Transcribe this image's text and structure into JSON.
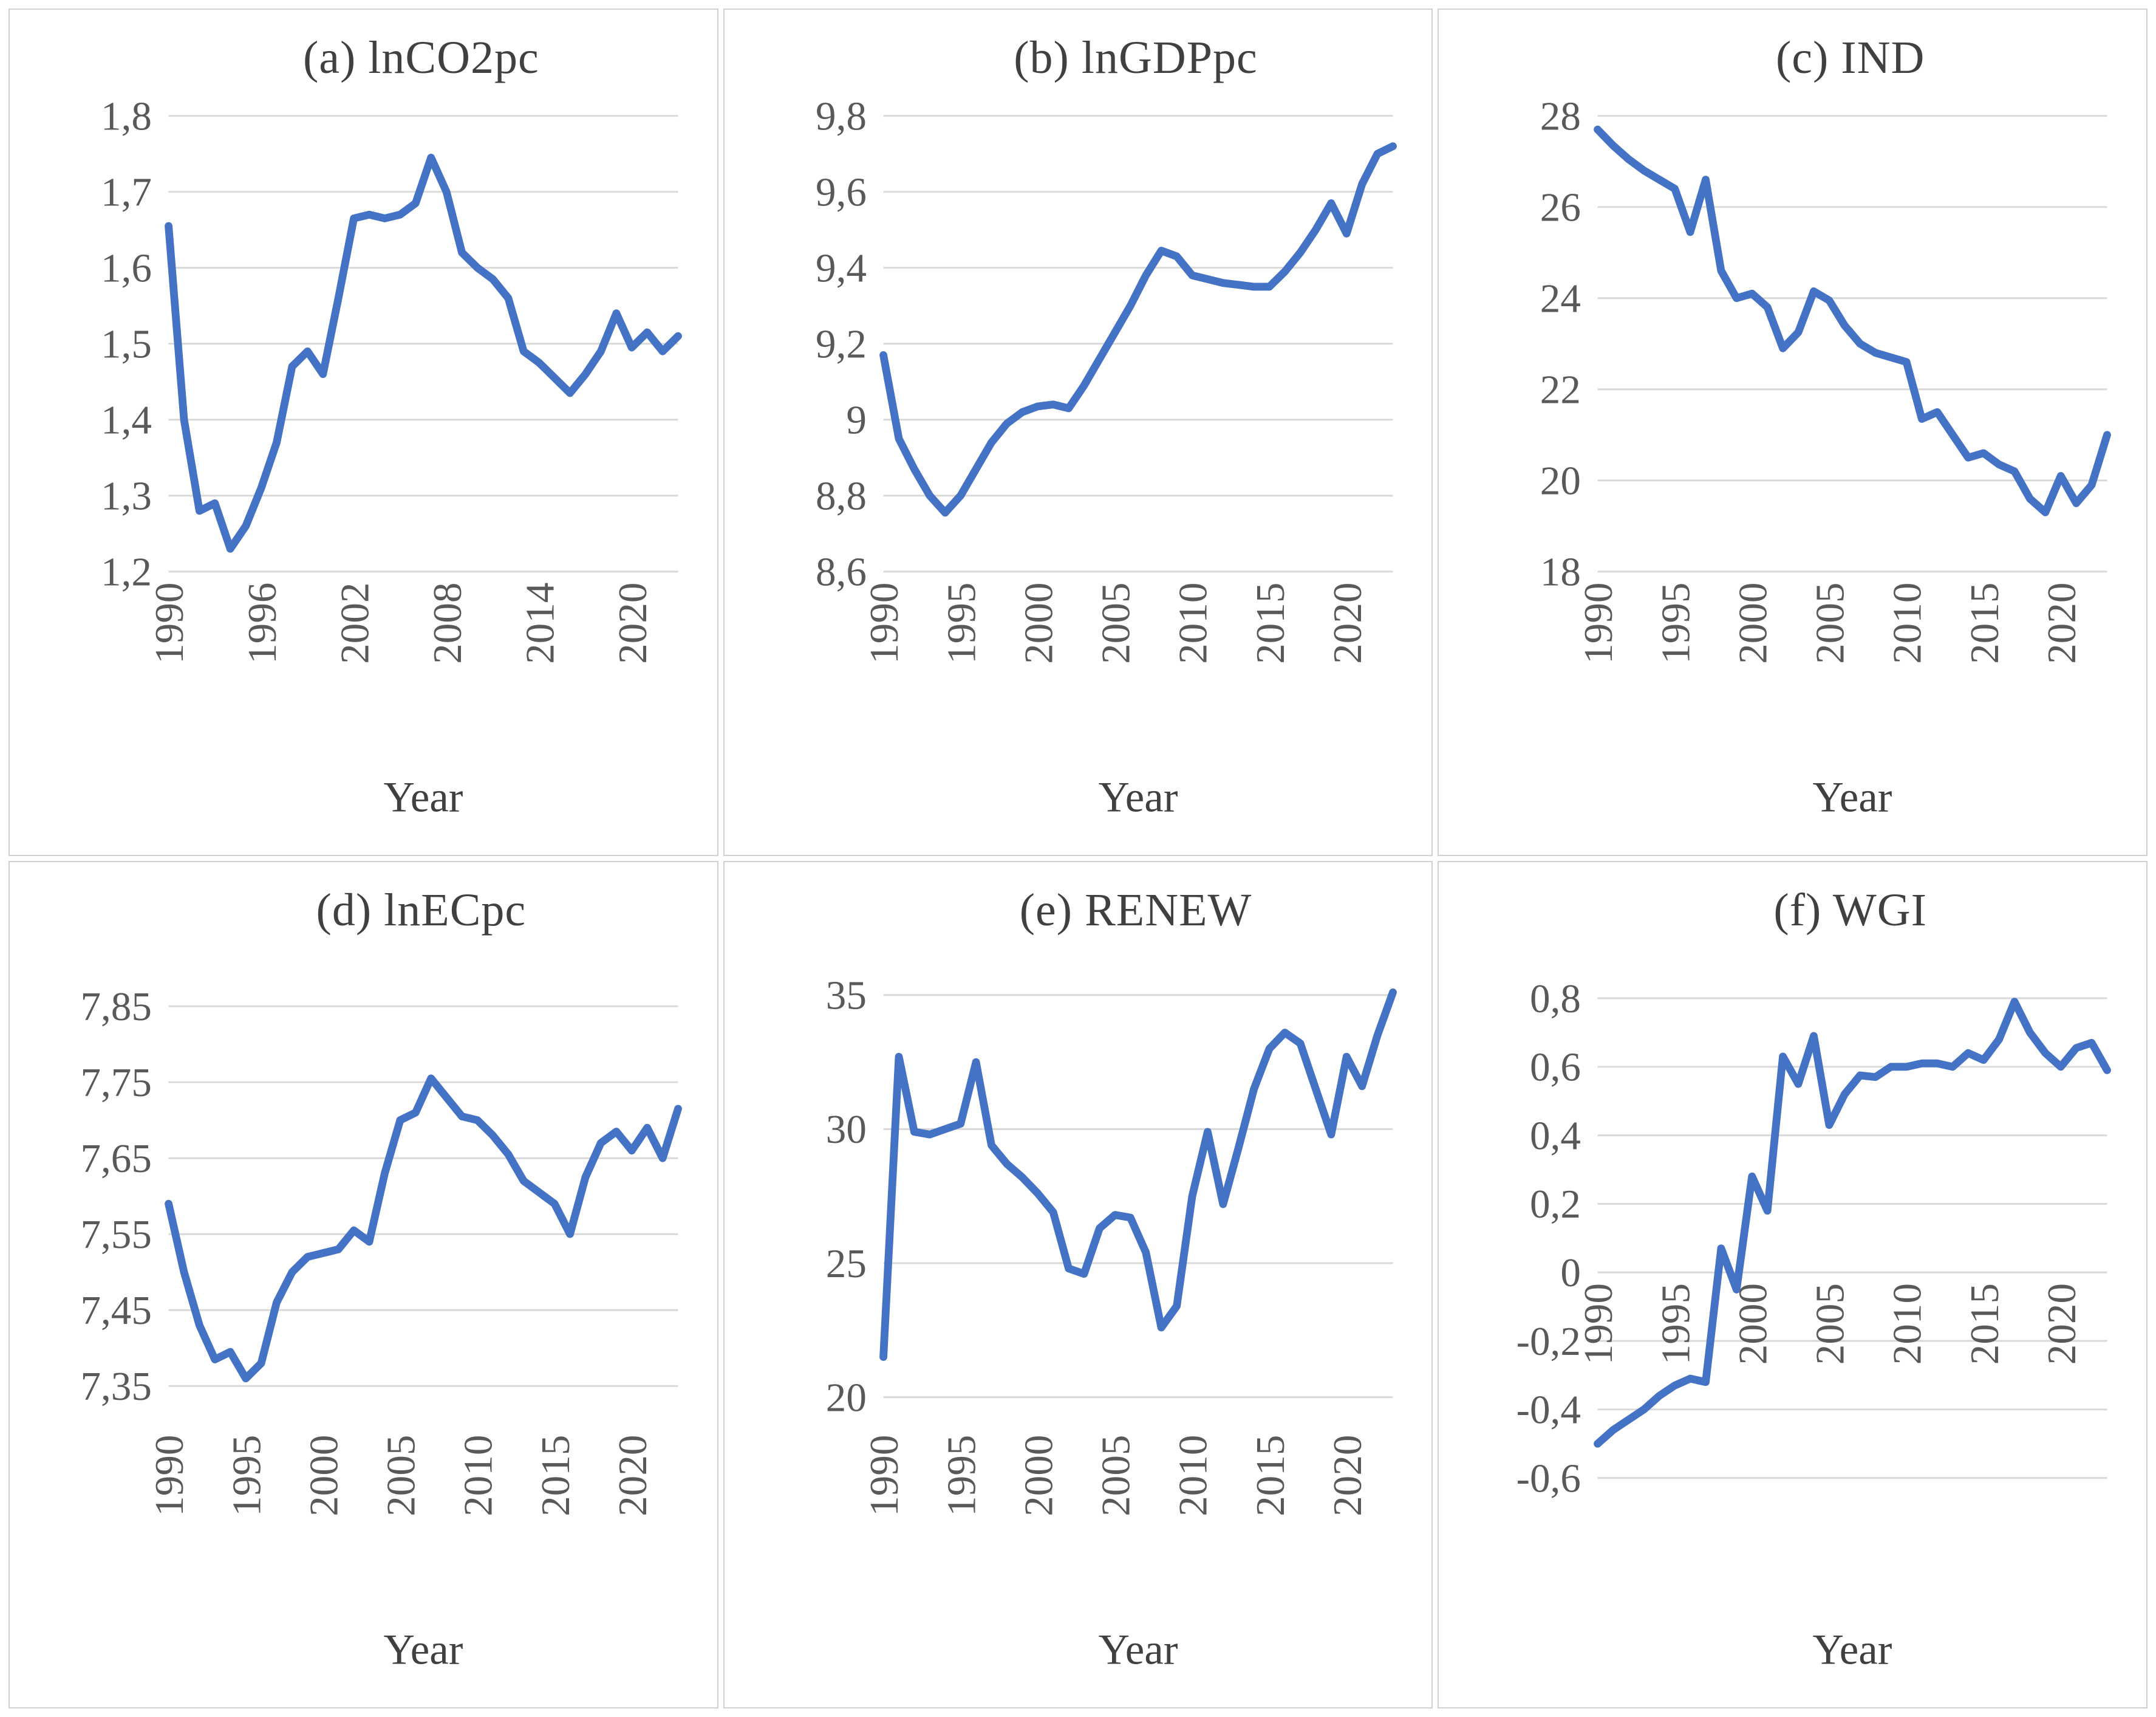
{
  "page": {
    "background": "#ffffff",
    "panel_border_color": "#d0d0d0"
  },
  "axis_styles": {
    "line_color": "#4472C4",
    "grid_color": "#d9d9d9",
    "tick_color": "#595959",
    "title_color": "#404040",
    "grid_on": true,
    "legend": "none"
  },
  "years": [
    1990,
    1991,
    1992,
    1993,
    1994,
    1995,
    1996,
    1997,
    1998,
    1999,
    2000,
    2001,
    2002,
    2003,
    2004,
    2005,
    2006,
    2007,
    2008,
    2009,
    2010,
    2011,
    2012,
    2013,
    2014,
    2015,
    2016,
    2017,
    2018,
    2019,
    2020,
    2021,
    2022,
    2023
  ],
  "chart_data": [
    {
      "id": "a",
      "type": "line",
      "title": "(a) lnCO2pc",
      "xlabel": "Year",
      "ylim": [
        1.2,
        1.8
      ],
      "ytick_values": [
        1.2,
        1.3,
        1.4,
        1.5,
        1.6,
        1.7,
        1.8
      ],
      "ytick_labels": [
        "1,2",
        "1,3",
        "1,4",
        "1,5",
        "1,6",
        "1,7",
        "1,8"
      ],
      "xticks": [
        1990,
        1996,
        2002,
        2008,
        2014,
        2020
      ],
      "xlabel_pos": "bottom",
      "values": [
        1.655,
        1.4,
        1.28,
        1.29,
        1.23,
        1.26,
        1.31,
        1.37,
        1.47,
        1.49,
        1.46,
        1.56,
        1.665,
        1.67,
        1.665,
        1.67,
        1.685,
        1.745,
        1.7,
        1.62,
        1.6,
        1.585,
        1.56,
        1.49,
        1.475,
        1.455,
        1.435,
        1.46,
        1.49,
        1.54,
        1.495,
        1.515,
        1.49,
        1.51
      ]
    },
    {
      "id": "b",
      "type": "line",
      "title": "(b) lnGDPpc",
      "xlabel": "Year",
      "ylim": [
        8.6,
        9.8
      ],
      "ytick_values": [
        8.6,
        8.8,
        9.0,
        9.2,
        9.4,
        9.6,
        9.8
      ],
      "ytick_labels": [
        "8,6",
        "8,8",
        "9",
        "9,2",
        "9,4",
        "9,6",
        "9,8"
      ],
      "xticks": [
        1990,
        1995,
        2000,
        2005,
        2010,
        2015,
        2020
      ],
      "xlabel_pos": "bottom",
      "values": [
        9.17,
        8.95,
        8.87,
        8.8,
        8.755,
        8.8,
        8.87,
        8.94,
        8.99,
        9.02,
        9.035,
        9.04,
        9.03,
        9.09,
        9.16,
        9.23,
        9.3,
        9.38,
        9.445,
        9.43,
        9.38,
        9.37,
        9.36,
        9.355,
        9.35,
        9.35,
        9.39,
        9.44,
        9.5,
        9.57,
        9.49,
        9.62,
        9.7,
        9.72
      ]
    },
    {
      "id": "c",
      "type": "line",
      "title": "(c) IND",
      "xlabel": "Year",
      "ylim": [
        18,
        28
      ],
      "ytick_values": [
        18,
        20,
        22,
        24,
        26,
        28
      ],
      "ytick_labels": [
        "18",
        "20",
        "22",
        "24",
        "26",
        "28"
      ],
      "xticks": [
        1990,
        1995,
        2000,
        2005,
        2010,
        2015,
        2020
      ],
      "xlabel_pos": "bottom",
      "values": [
        27.7,
        27.35,
        27.05,
        26.8,
        26.6,
        26.4,
        25.45,
        26.6,
        24.6,
        24.0,
        24.1,
        23.8,
        22.9,
        23.25,
        24.15,
        23.95,
        23.4,
        23.0,
        22.8,
        22.7,
        22.6,
        21.35,
        21.5,
        21.0,
        20.5,
        20.6,
        20.35,
        20.2,
        19.6,
        19.3,
        20.1,
        19.5,
        19.9,
        21.0
      ]
    },
    {
      "id": "d",
      "type": "line",
      "title": "(d) lnECpc",
      "xlabel": "Year",
      "ylim": [
        7.3,
        7.9
      ],
      "ytick_values": [
        7.35,
        7.45,
        7.55,
        7.65,
        7.75,
        7.85
      ],
      "ytick_labels": [
        "7,35",
        "7,45",
        "7,55",
        "7,65",
        "7,75",
        "7,85"
      ],
      "xticks": [
        1990,
        1995,
        2000,
        2005,
        2010,
        2015,
        2020
      ],
      "xlabel_pos": "bottom",
      "values": [
        7.59,
        7.5,
        7.43,
        7.385,
        7.395,
        7.36,
        7.38,
        7.46,
        7.5,
        7.52,
        7.525,
        7.53,
        7.555,
        7.54,
        7.63,
        7.7,
        7.71,
        7.755,
        7.73,
        7.705,
        7.7,
        7.68,
        7.655,
        7.62,
        7.605,
        7.59,
        7.55,
        7.625,
        7.67,
        7.685,
        7.66,
        7.69,
        7.65,
        7.715
      ]
    },
    {
      "id": "e",
      "type": "line",
      "title": "(e) RENEW",
      "xlabel": "Year",
      "ylim": [
        19,
        36
      ],
      "ytick_values": [
        20,
        25,
        30,
        35
      ],
      "ytick_labels": [
        "20",
        "25",
        "30",
        "35"
      ],
      "xticks": [
        1990,
        1995,
        2000,
        2005,
        2010,
        2015,
        2020
      ],
      "xlabel_pos": "bottom",
      "values": [
        21.5,
        32.7,
        29.9,
        29.8,
        30.0,
        30.2,
        32.5,
        29.4,
        28.7,
        28.2,
        27.6,
        26.9,
        24.8,
        24.6,
        26.3,
        26.8,
        26.7,
        25.4,
        22.6,
        23.4,
        27.5,
        29.9,
        27.2,
        29.3,
        31.5,
        33.0,
        33.6,
        33.2,
        31.5,
        29.8,
        32.7,
        31.6,
        33.5,
        35.1
      ]
    },
    {
      "id": "f",
      "type": "line",
      "title": "(f) WGI",
      "xlabel": "Year",
      "ylim": [
        -0.6,
        0.8
      ],
      "ytick_values": [
        -0.6,
        -0.4,
        -0.2,
        0,
        0.2,
        0.4,
        0.6,
        0.8
      ],
      "ytick_labels": [
        "-0,6",
        "-0,4",
        "-0,2",
        "0",
        "0,2",
        "0,4",
        "0,6",
        "0,8"
      ],
      "xticks": [
        1990,
        1995,
        2000,
        2005,
        2010,
        2015,
        2020
      ],
      "xlabel_pos": "zero",
      "values": [
        -0.5,
        -0.46,
        -0.43,
        -0.4,
        -0.36,
        -0.33,
        -0.31,
        -0.32,
        0.07,
        -0.05,
        0.28,
        0.18,
        0.63,
        0.55,
        0.69,
        0.43,
        0.52,
        0.575,
        0.57,
        0.6,
        0.6,
        0.61,
        0.61,
        0.6,
        0.64,
        0.62,
        0.68,
        0.79,
        0.7,
        0.64,
        0.6,
        0.655,
        0.67,
        0.59
      ]
    }
  ]
}
